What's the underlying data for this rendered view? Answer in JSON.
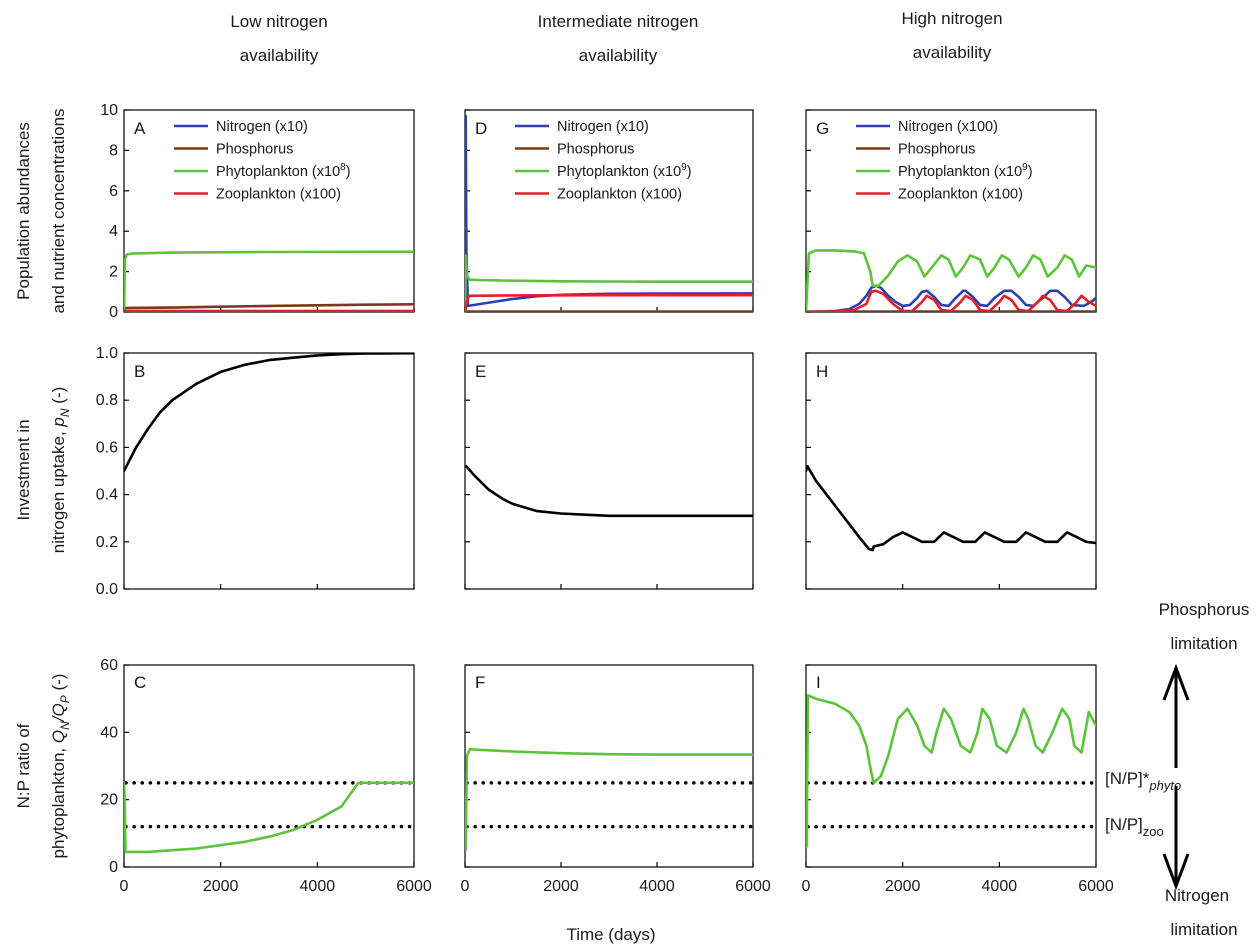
{
  "columns": [
    {
      "title_line1": "Low nitrogen",
      "title_line2": "availability"
    },
    {
      "title_line1": "Intermediate nitrogen",
      "title_line2": "availability"
    },
    {
      "title_line1": "High nitrogen",
      "title_line2": "availability"
    }
  ],
  "row_labels": {
    "top": [
      "Population abundances",
      "and nutrient concentrations"
    ],
    "mid_line1": "Investment in",
    "mid_line2_prefix": "nitrogen uptake, ",
    "mid_line2_symbol": "p",
    "mid_line2_sub": "N",
    "mid_line2_suffix": " (-)",
    "bot_line1": "N:P ratio of",
    "bot_line2_prefix": "phytoplankton, ",
    "bot_line2_q1": "Q",
    "bot_line2_sub1": "N",
    "bot_line2_slash": "/",
    "bot_line2_q2": "Q",
    "bot_line2_sub2": "P",
    "bot_line2_suffix": " (-)"
  },
  "xlabel": "Time (days)",
  "side_annotations": {
    "phos_line1": "Phosphorus",
    "phos_line2": "limitation",
    "nit_line1": "Nitrogen",
    "nit_line2": "limitation",
    "phyto_bracket": "[N/P]*",
    "phyto_sub": "phyto",
    "zoo_bracket": "[N/P]",
    "zoo_sub": "zoo"
  },
  "colors": {
    "nitrogen": "#2e3fb0",
    "phosphorus": "#7a3a1a",
    "phytoplankton": "#5cc43a",
    "zooplankton": "#e0202a",
    "investment": "#000000",
    "reference": "#000000"
  },
  "chart_data": [
    {
      "type": "line",
      "panel": "A",
      "xlim": [
        0,
        6000
      ],
      "ylim": [
        0,
        10
      ],
      "yticks": [
        "0",
        "2",
        "4",
        "6",
        "8",
        "10"
      ],
      "xticks": [],
      "legend": [
        {
          "key": "nitrogen",
          "label": "Nitrogen (x10)"
        },
        {
          "key": "phosphorus",
          "label": "Phosphorus"
        },
        {
          "key": "phytoplankton",
          "label": "Phytoplankton (x10",
          "sup": "8",
          "tail": ")"
        },
        {
          "key": "zooplankton",
          "label": "Zooplankton (x100)"
        }
      ],
      "series": [
        {
          "key": "nitrogen",
          "x": [
            0,
            20,
            100,
            500,
            1000,
            3000,
            6000
          ],
          "y": [
            0.3,
            0.05,
            0.05,
            0.05,
            0.05,
            0.05,
            0.05
          ]
        },
        {
          "key": "phosphorus",
          "x": [
            0,
            20,
            1000,
            2000,
            3000,
            4000,
            5000,
            6000
          ],
          "y": [
            0.2,
            0.2,
            0.22,
            0.26,
            0.3,
            0.33,
            0.36,
            0.38
          ]
        },
        {
          "key": "phytoplankton",
          "x": [
            0,
            20,
            60,
            200,
            1000,
            3000,
            6000
          ],
          "y": [
            0,
            2.6,
            2.85,
            2.9,
            2.94,
            2.97,
            2.98
          ]
        },
        {
          "key": "zooplankton",
          "x": [
            0,
            20,
            500,
            1000,
            3000,
            6000
          ],
          "y": [
            0.05,
            0.03,
            0.03,
            0.03,
            0.03,
            0.03
          ]
        }
      ]
    },
    {
      "type": "line",
      "panel": "D",
      "xlim": [
        0,
        6000
      ],
      "ylim": [
        0,
        10
      ],
      "yticks": [],
      "xticks": [],
      "legend": [
        {
          "key": "nitrogen",
          "label": "Nitrogen (x10)"
        },
        {
          "key": "phosphorus",
          "label": "Phosphorus"
        },
        {
          "key": "phytoplankton",
          "label": "Phytoplankton (x10",
          "sup": "9",
          "tail": ")"
        },
        {
          "key": "zooplankton",
          "label": "Zooplankton (x100)"
        }
      ],
      "series": [
        {
          "key": "nitrogen",
          "x": [
            0,
            15,
            30,
            60,
            200,
            600,
            1000,
            1500,
            2000,
            3000,
            4000,
            6000
          ],
          "y": [
            9.7,
            9.7,
            3,
            0.3,
            0.35,
            0.5,
            0.65,
            0.78,
            0.85,
            0.9,
            0.91,
            0.92
          ]
        },
        {
          "key": "phosphorus",
          "x": [
            0,
            6000
          ],
          "y": [
            0.02,
            0.02
          ]
        },
        {
          "key": "phytoplankton",
          "x": [
            0,
            15,
            40,
            100,
            300,
            1000,
            2000,
            4000,
            6000
          ],
          "y": [
            0,
            2.8,
            1.8,
            1.6,
            1.58,
            1.55,
            1.52,
            1.5,
            1.5
          ]
        },
        {
          "key": "zooplankton",
          "x": [
            0,
            40,
            80,
            150,
            1000,
            3000,
            6000
          ],
          "y": [
            0,
            0.5,
            0.8,
            0.8,
            0.82,
            0.83,
            0.83
          ]
        }
      ]
    },
    {
      "type": "line",
      "panel": "G",
      "xlim": [
        0,
        6000
      ],
      "ylim": [
        0,
        10
      ],
      "yticks": [],
      "xticks": [],
      "legend": [
        {
          "key": "nitrogen",
          "label": "Nitrogen (x100)"
        },
        {
          "key": "phosphorus",
          "label": "Phosphorus"
        },
        {
          "key": "phytoplankton",
          "label": "Phytoplankton (x10",
          "sup": "9",
          "tail": ")"
        },
        {
          "key": "zooplankton",
          "label": "Zooplankton (x100)"
        }
      ],
      "series": [
        {
          "key": "nitrogen",
          "x": [
            0,
            300,
            600,
            900,
            1100,
            1250,
            1350,
            1450,
            1550,
            1700,
            1850,
            2000,
            2150,
            2300,
            2400,
            2500,
            2650,
            2800,
            2950,
            3100,
            3250,
            3300,
            3450,
            3600,
            3750,
            3900,
            4100,
            4250,
            4400,
            4550,
            4700,
            4900,
            5050,
            5200,
            5350,
            5500,
            5750,
            5900,
            6000
          ],
          "y": [
            0,
            0.02,
            0.05,
            0.15,
            0.4,
            0.8,
            1.2,
            1.3,
            1.2,
            0.8,
            0.5,
            0.3,
            0.35,
            0.7,
            1.0,
            1.05,
            0.75,
            0.35,
            0.3,
            0.7,
            1.05,
            1.05,
            0.75,
            0.35,
            0.3,
            0.7,
            1.05,
            1.05,
            0.75,
            0.35,
            0.3,
            0.7,
            1.05,
            1.05,
            0.75,
            0.35,
            0.3,
            0.5,
            0.7
          ]
        },
        {
          "key": "phosphorus",
          "x": [
            0,
            6000
          ],
          "y": [
            0.02,
            0.02
          ]
        },
        {
          "key": "phytoplankton",
          "x": [
            0,
            60,
            200,
            600,
            1000,
            1200,
            1330,
            1380,
            1500,
            1700,
            1900,
            2100,
            2300,
            2450,
            2600,
            2800,
            2950,
            3100,
            3250,
            3400,
            3600,
            3750,
            3900,
            4050,
            4200,
            4400,
            4550,
            4700,
            4850,
            5000,
            5200,
            5350,
            5500,
            5650,
            5800,
            6000
          ],
          "y": [
            0,
            2.9,
            3.05,
            3.05,
            3.0,
            2.9,
            2.0,
            1.3,
            1.3,
            1.8,
            2.5,
            2.8,
            2.5,
            1.75,
            2.2,
            2.8,
            2.6,
            1.75,
            2.2,
            2.8,
            2.6,
            1.75,
            2.2,
            2.8,
            2.6,
            1.75,
            2.2,
            2.8,
            2.6,
            1.75,
            2.2,
            2.8,
            2.6,
            1.75,
            2.3,
            2.2
          ]
        },
        {
          "key": "zooplankton",
          "x": [
            0,
            600,
            1000,
            1250,
            1350,
            1450,
            1600,
            1800,
            2000,
            2200,
            2400,
            2500,
            2650,
            2800,
            3000,
            3200,
            3300,
            3450,
            3600,
            3800,
            4000,
            4100,
            4250,
            4400,
            4600,
            4800,
            4900,
            5050,
            5200,
            5400,
            5600,
            5700,
            5850,
            6000
          ],
          "y": [
            0,
            0.02,
            0.1,
            0.4,
            1.0,
            1.05,
            0.9,
            0.4,
            0.05,
            0.05,
            0.5,
            0.8,
            0.6,
            0.1,
            0.05,
            0.5,
            0.8,
            0.6,
            0.1,
            0.05,
            0.5,
            0.8,
            0.6,
            0.1,
            0.05,
            0.5,
            0.8,
            0.6,
            0.1,
            0.05,
            0.5,
            0.8,
            0.5,
            0.3
          ]
        }
      ]
    },
    {
      "type": "line",
      "panel": "B",
      "xlim": [
        0,
        6000
      ],
      "ylim": [
        0,
        1
      ],
      "yticks": [
        "0.0",
        "0.2",
        "0.4",
        "0.6",
        "0.8",
        "1.0"
      ],
      "xticks": [],
      "series": [
        {
          "key": "investment",
          "x": [
            0,
            250,
            500,
            750,
            1000,
            1500,
            2000,
            2500,
            3000,
            3500,
            4000,
            4500,
            5000,
            6000
          ],
          "y": [
            0.5,
            0.6,
            0.68,
            0.75,
            0.8,
            0.87,
            0.92,
            0.95,
            0.97,
            0.98,
            0.99,
            0.995,
            0.998,
            0.999
          ]
        }
      ]
    },
    {
      "type": "line",
      "panel": "E",
      "xlim": [
        0,
        6000
      ],
      "ylim": [
        0,
        1
      ],
      "yticks": [],
      "xticks": [],
      "series": [
        {
          "key": "investment",
          "x": [
            0,
            30,
            200,
            500,
            800,
            1000,
            1500,
            2000,
            2500,
            3000,
            4000,
            5000,
            6000
          ],
          "y": [
            0.52,
            0.52,
            0.48,
            0.42,
            0.38,
            0.36,
            0.33,
            0.32,
            0.315,
            0.31,
            0.31,
            0.31,
            0.31
          ]
        }
      ]
    },
    {
      "type": "line",
      "panel": "H",
      "xlim": [
        0,
        6000
      ],
      "ylim": [
        0,
        1
      ],
      "yticks": [],
      "xticks": [],
      "series": [
        {
          "key": "investment",
          "x": [
            0,
            30,
            200,
            500,
            800,
            1100,
            1300,
            1380,
            1400,
            1600,
            1800,
            2000,
            2200,
            2400,
            2650,
            2850,
            3050,
            3250,
            3500,
            3700,
            3900,
            4100,
            4350,
            4550,
            4750,
            4950,
            5200,
            5400,
            5600,
            5800,
            6000
          ],
          "y": [
            0.5,
            0.52,
            0.46,
            0.38,
            0.3,
            0.22,
            0.17,
            0.165,
            0.18,
            0.19,
            0.22,
            0.24,
            0.22,
            0.2,
            0.2,
            0.24,
            0.22,
            0.2,
            0.2,
            0.24,
            0.22,
            0.2,
            0.2,
            0.24,
            0.22,
            0.2,
            0.2,
            0.24,
            0.22,
            0.2,
            0.195
          ]
        }
      ]
    },
    {
      "type": "line",
      "panel": "C",
      "xlim": [
        0,
        6000
      ],
      "ylim": [
        0,
        60
      ],
      "yticks": [
        "0",
        "20",
        "40",
        "60"
      ],
      "xticks": [
        "0",
        "2000",
        "4000",
        "6000"
      ],
      "reference_lines": [
        {
          "label": "[N/P]*phyto",
          "y": 25
        },
        {
          "label": "[N/P]zoo",
          "y": 12
        }
      ],
      "series": [
        {
          "key": "phytoplankton",
          "x": [
            0,
            15,
            30,
            500,
            1000,
            1500,
            2000,
            2500,
            3000,
            3500,
            4000,
            4500,
            4850,
            5000,
            6000
          ],
          "y": [
            25,
            20,
            4.5,
            4.5,
            5,
            5.5,
            6.5,
            7.5,
            9,
            11,
            14,
            18,
            25,
            25,
            25
          ]
        }
      ]
    },
    {
      "type": "line",
      "panel": "F",
      "xlim": [
        0,
        6000
      ],
      "ylim": [
        0,
        60
      ],
      "yticks": [],
      "xticks": [
        "0",
        "2000",
        "4000",
        "6000"
      ],
      "reference_lines": [
        {
          "label": "[N/P]*phyto",
          "y": 25
        },
        {
          "label": "[N/P]zoo",
          "y": 12
        }
      ],
      "series": [
        {
          "key": "phytoplankton",
          "x": [
            0,
            15,
            40,
            100,
            300,
            1000,
            2000,
            3000,
            4000,
            6000
          ],
          "y": [
            10,
            5,
            33,
            35,
            34.8,
            34.3,
            33.8,
            33.5,
            33.4,
            33.4
          ]
        }
      ]
    },
    {
      "type": "line",
      "panel": "I",
      "xlim": [
        0,
        6000
      ],
      "ylim": [
        0,
        60
      ],
      "yticks": [],
      "xticks": [
        "0",
        "2000",
        "4000",
        "6000"
      ],
      "reference_lines": [
        {
          "label": "[N/P]*phyto",
          "y": 25
        },
        {
          "label": "[N/P]zoo",
          "y": 12
        }
      ],
      "series": [
        {
          "key": "phytoplankton",
          "x": [
            0,
            15,
            40,
            200,
            600,
            900,
            1100,
            1250,
            1350,
            1400,
            1550,
            1700,
            1900,
            2100,
            2300,
            2450,
            2600,
            2700,
            2850,
            3000,
            3200,
            3400,
            3550,
            3650,
            3800,
            3950,
            4150,
            4350,
            4500,
            4600,
            4750,
            4900,
            5100,
            5300,
            5450,
            5550,
            5700,
            5850,
            6000
          ],
          "y": [
            10,
            6,
            51,
            50,
            48.5,
            46,
            42,
            36,
            28,
            25,
            27,
            33,
            44,
            47,
            42,
            36,
            34,
            40,
            47,
            44,
            36,
            34,
            40,
            47,
            44,
            36,
            34,
            40,
            47,
            44,
            36,
            34,
            40,
            47,
            44,
            36,
            34,
            46,
            42
          ]
        }
      ]
    }
  ]
}
